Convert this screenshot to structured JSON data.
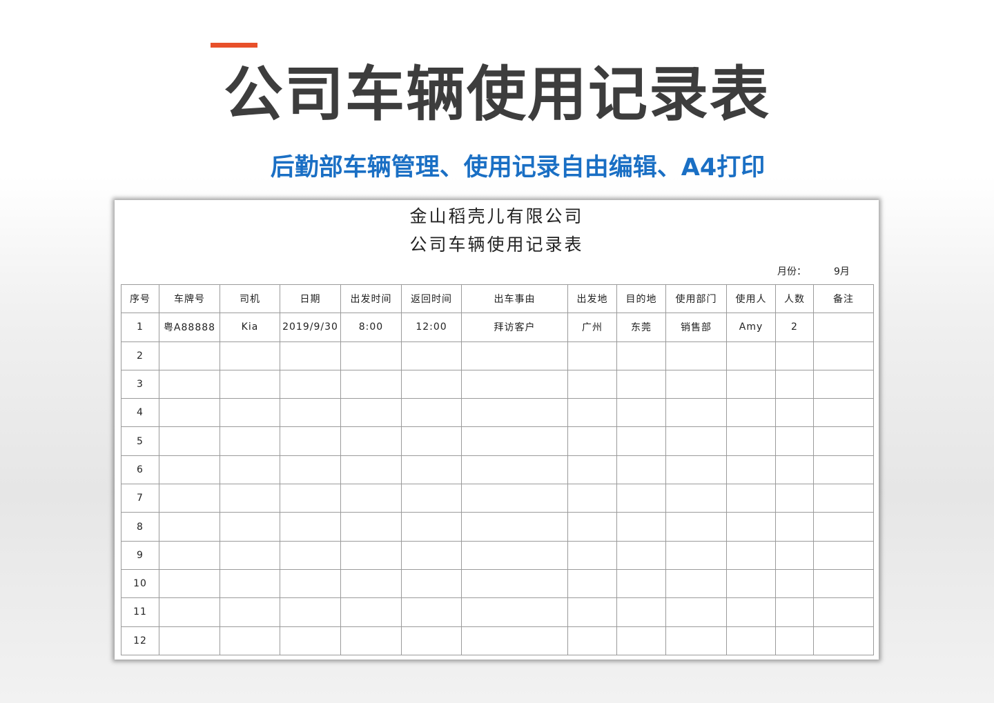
{
  "banner": {
    "title": "公司车辆使用记录表",
    "subtitle": "后勤部车辆管理、使用记录自由编辑、A4打印",
    "accent": "#e8502a",
    "subtitle_color": "#1a6fc4"
  },
  "sheet": {
    "company": "金山稻壳儿有限公司",
    "title": "公司车辆使用记录表",
    "month_label": "月份：",
    "month_value": "9月",
    "columns": [
      "序号",
      "车牌号",
      "司机",
      "日期",
      "出发时间",
      "返回时间",
      "出车事由",
      "出发地",
      "目的地",
      "使用部门",
      "使用人",
      "人数",
      "备注"
    ],
    "rows": [
      [
        "1",
        "粤A88888",
        "Kia",
        "2019/9/30",
        "8:00",
        "12:00",
        "拜访客户",
        "广州",
        "东莞",
        "销售部",
        "Amy",
        "2",
        ""
      ],
      [
        "2"
      ],
      [
        "3"
      ],
      [
        "4"
      ],
      [
        "5"
      ],
      [
        "6"
      ],
      [
        "7"
      ],
      [
        "8"
      ],
      [
        "9"
      ],
      [
        "10"
      ],
      [
        "11"
      ],
      [
        "12"
      ]
    ]
  }
}
